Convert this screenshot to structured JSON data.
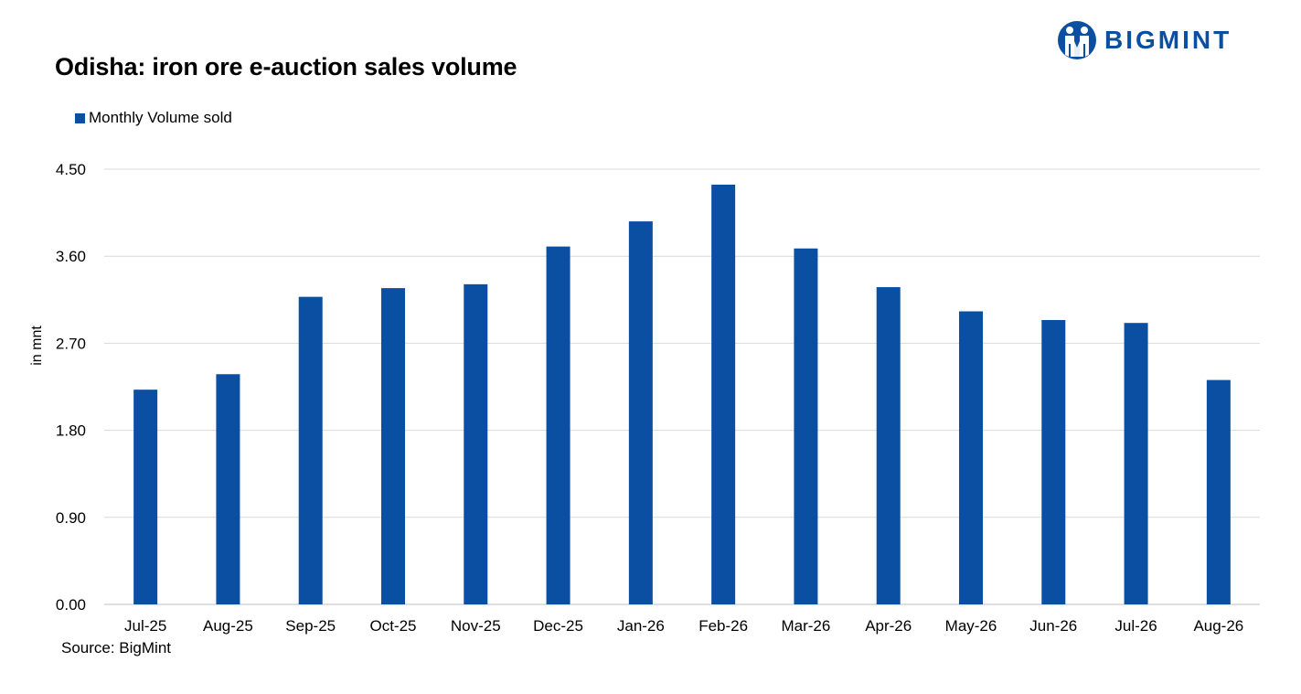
{
  "brand": {
    "name": "BIGMINT",
    "color": "#0b4fa3"
  },
  "footer": {
    "source": "Source: BigMint"
  },
  "chart_data": {
    "type": "bar",
    "title": "Odisha: iron ore e-auction sales volume",
    "ylabel": "in mnt",
    "xlabel": "",
    "categories": [
      "Jul-25",
      "Aug-25",
      "Sep-25",
      "Oct-25",
      "Nov-25",
      "Dec-25",
      "Jan-26",
      "Feb-26",
      "Mar-26",
      "Apr-26",
      "May-26",
      "Jun-26",
      "Jul-26",
      "Aug-26"
    ],
    "series": [
      {
        "name": "Monthly Volume sold",
        "color": "#0b4fa3",
        "values": [
          2.22,
          2.38,
          3.18,
          3.27,
          3.31,
          3.7,
          3.96,
          4.34,
          3.68,
          3.28,
          3.03,
          2.94,
          2.91,
          2.32
        ]
      }
    ],
    "ylim": [
      0,
      4.5
    ],
    "yticks": [
      "0.00",
      "0.90",
      "1.80",
      "2.70",
      "3.60",
      "4.50"
    ],
    "grid": true,
    "legend_position": "top-left"
  }
}
